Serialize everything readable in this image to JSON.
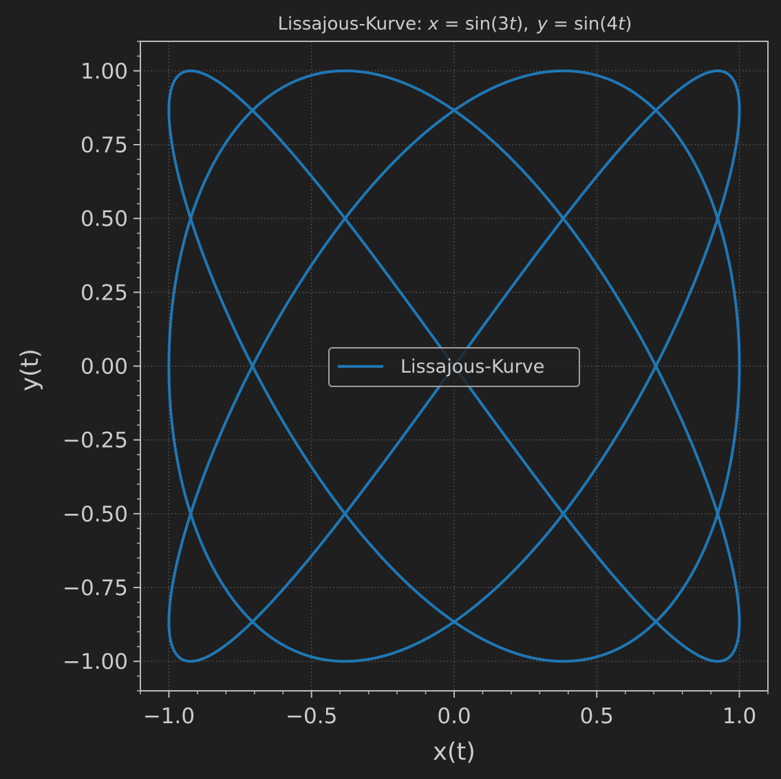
{
  "chart_data": {
    "type": "line",
    "title": {
      "prefix": "Lissajous-Kurve: ",
      "x_part": {
        "var": "x",
        "eq": " = sin(3",
        "t": "t",
        "close": "),"
      },
      "y_part": {
        "var": "y",
        "eq": " = sin(4",
        "t": "t",
        "close": ")"
      }
    },
    "xlabel": "x(t)",
    "ylabel": "y(t)",
    "xlim": [
      -1.1,
      1.1
    ],
    "ylim": [
      -1.1,
      1.1
    ],
    "x_ticks": [
      -1.0,
      -0.5,
      0.0,
      0.5,
      1.0
    ],
    "x_tick_labels": [
      "−1.0",
      "−0.5",
      "0.0",
      "0.5",
      "1.0"
    ],
    "y_ticks": [
      1.0,
      0.75,
      0.5,
      0.25,
      0.0,
      -0.25,
      -0.5,
      -0.75,
      -1.0
    ],
    "y_tick_labels": [
      "1.00",
      "0.75",
      "0.50",
      "0.25",
      "0.00",
      "−0.25",
      "−0.50",
      "−0.75",
      "−1.00"
    ],
    "grid": true,
    "legend_position": "center",
    "series": [
      {
        "name": "Lissajous-Kurve",
        "x_freq": 3,
        "y_freq": 4,
        "t_range": [
          0,
          6.283185307179586
        ],
        "color": "#1f77b4"
      }
    ],
    "colors": {
      "background": "#1f1f1f",
      "text": "#cccccc",
      "grid": "#555555",
      "line": "#1f77b4"
    }
  }
}
